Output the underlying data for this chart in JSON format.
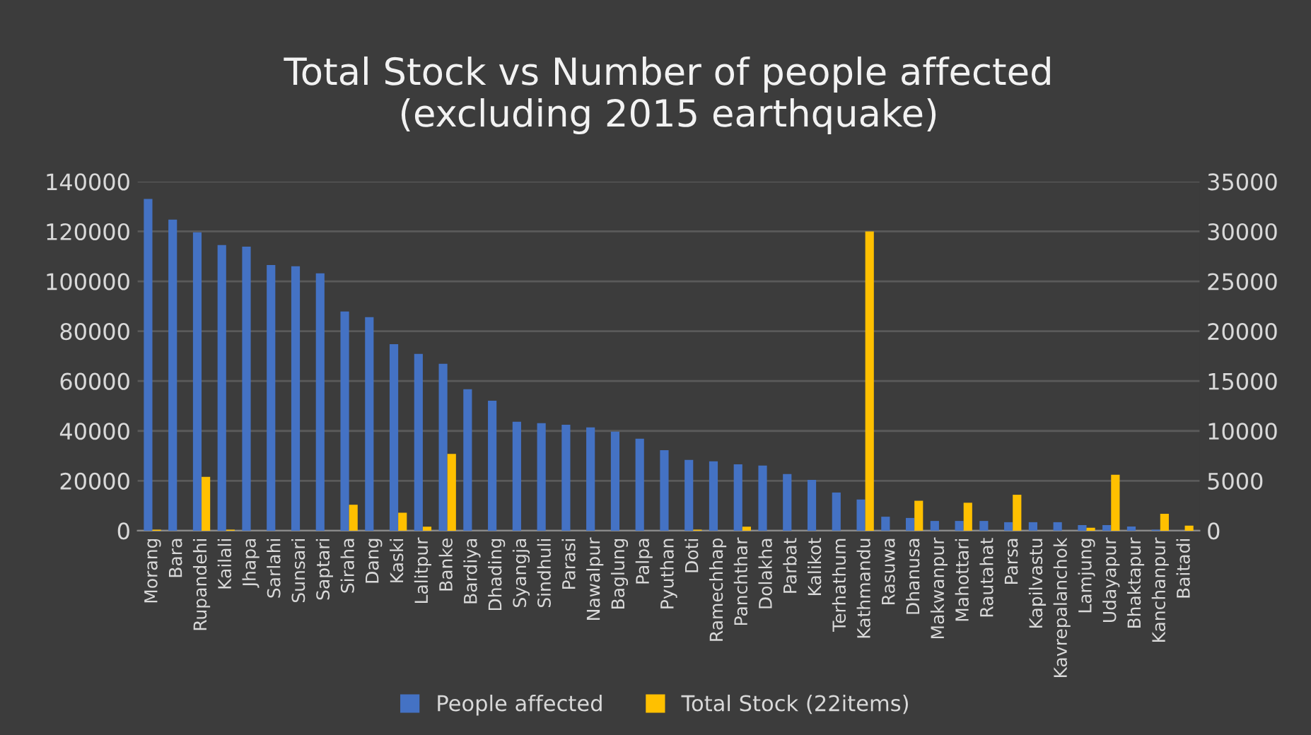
{
  "chart_data": {
    "type": "bar",
    "title": "Total Stock vs Number of people affected\n(excluding 2015 earthquake)",
    "categories": [
      "Morang",
      "Bara",
      "Rupandehi",
      "Kailali",
      "Jhapa",
      "Sarlahi",
      "Sunsari",
      "Saptari",
      "Siraha",
      "Dang",
      "Kaski",
      "Lalitpur",
      "Banke",
      "Bardiya",
      "Dhading",
      "Syangja",
      "Sindhuli",
      "Parasi",
      "Nawalpur",
      "Baglung",
      "Palpa",
      "Pyuthan",
      "Doti",
      "Ramechhap",
      "Panchthar",
      "Dolakha",
      "Parbat",
      "Kalikot",
      "Terhathum",
      "Kathmandu",
      "Rasuwa",
      "Dhanusa",
      "Makwanpur",
      "Mahottari",
      "Rautahat",
      "Parsa",
      "Kapilvastu",
      "Kavrepalanchok",
      "Lamjung",
      "Udayapur",
      "Bhaktapur",
      "Kanchanpur",
      "Baitadi"
    ],
    "series": [
      {
        "name": "People affected",
        "color": "#4472c4",
        "values": [
          133000,
          124700,
          119600,
          114500,
          113900,
          106500,
          106000,
          103200,
          87900,
          85600,
          74800,
          70900,
          66900,
          56700,
          52100,
          43700,
          43100,
          42500,
          41400,
          39700,
          36900,
          32300,
          28400,
          27800,
          26600,
          26100,
          22700,
          20400,
          15300,
          12500,
          5600,
          5100,
          3900,
          3900,
          3900,
          3400,
          3400,
          3400,
          2200,
          2200,
          1700,
          400,
          null
        ]
      },
      {
        "name": "Total Stock (22items)",
        "color": "#ffc000",
        "axis": "y2",
        "values": [
          100,
          0,
          5400,
          100,
          0,
          0,
          0,
          0,
          2600,
          0,
          1800,
          400,
          7700,
          0,
          0,
          0,
          0,
          0,
          0,
          0,
          0,
          0,
          100,
          0,
          400,
          0,
          0,
          0,
          0,
          30000,
          0,
          3000,
          0,
          2800,
          0,
          3600,
          0,
          0,
          300,
          5600,
          0,
          1700,
          500
        ]
      }
    ],
    "ylim": [
      0,
      140000
    ],
    "yticks": [
      0,
      20000,
      40000,
      60000,
      80000,
      100000,
      120000,
      140000
    ],
    "y2lim": [
      0,
      35000
    ],
    "y2ticks": [
      0,
      5000,
      10000,
      15000,
      20000,
      25000,
      30000,
      35000
    ],
    "grid": "y",
    "legend": "bottom"
  }
}
